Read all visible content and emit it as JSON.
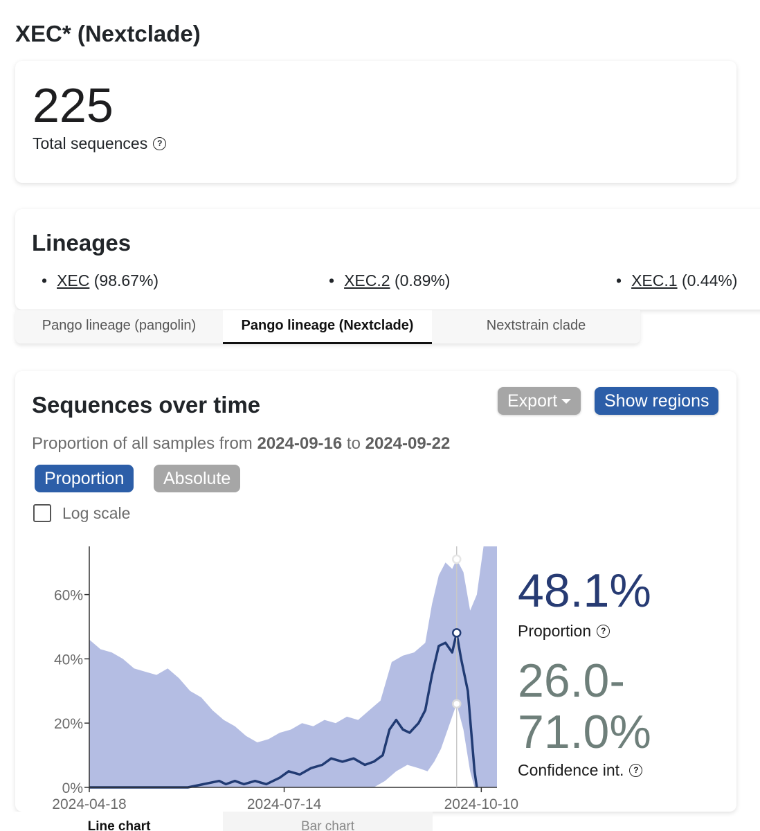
{
  "page": {
    "title": "XEC* (Nextclade)"
  },
  "total": {
    "value": "225",
    "label": "Total sequences",
    "help_glyph": "?"
  },
  "lineages": {
    "title": "Lineages",
    "items": [
      {
        "name": "XEC",
        "percent": "(98.67%)"
      },
      {
        "name": "XEC.2",
        "percent": "(0.89%)"
      },
      {
        "name": "XEC.1",
        "percent": "(0.44%)"
      }
    ]
  },
  "lineage_tabs": [
    "Pango lineage (pangolin)",
    "Pango lineage (Nextclade)",
    "Nextstrain clade"
  ],
  "lineage_tab_active": "Pango lineage (Nextclade)",
  "sequences": {
    "title": "Sequences over time",
    "export_label": "Export",
    "regions_label": "Show regions",
    "subtitle_prefix": "Proportion of all samples from",
    "subtitle_from": "2024-09-16",
    "subtitle_to_word": "to",
    "subtitle_to": "2024-09-22",
    "mode_proportion": "Proportion",
    "mode_absolute": "Absolute",
    "log_scale_label": "Log scale",
    "log_scale_checked": false,
    "stat_value": "48.1%",
    "stat_label": "Proportion",
    "ci_value": "26.0-\n71.0%",
    "ci_label": "Confidence int."
  },
  "chart_tabs": [
    "Line chart",
    "Bar chart"
  ],
  "chart_tab_active": "Line chart",
  "colors": {
    "line": "#213b73",
    "band": "#b4bde3",
    "accent_blue": "#2c5ea8",
    "button_gray": "#a6a6a6"
  },
  "chart_data": {
    "type": "area",
    "x_ticks": [
      "2024-04-18",
      "2024-07-14",
      "2024-10-10"
    ],
    "y_ticks": [
      "0%",
      "20%",
      "40%",
      "60%"
    ],
    "xlim": [
      "2024-04-18",
      "2024-10-17"
    ],
    "ylim": [
      0,
      0.75
    ],
    "grid": false,
    "series": [
      {
        "kind": "line",
        "points": [
          [
            "2024-04-18",
            0
          ],
          [
            "2024-06-01",
            0
          ],
          [
            "2024-06-08",
            0.01
          ],
          [
            "2024-06-15",
            0.02
          ],
          [
            "2024-06-18",
            0.01
          ],
          [
            "2024-06-22",
            0.02
          ],
          [
            "2024-06-26",
            0.01
          ],
          [
            "2024-07-01",
            0.02
          ],
          [
            "2024-07-06",
            0.01
          ],
          [
            "2024-07-12",
            0.03
          ],
          [
            "2024-07-16",
            0.05
          ],
          [
            "2024-07-21",
            0.04
          ],
          [
            "2024-07-26",
            0.06
          ],
          [
            "2024-07-31",
            0.07
          ],
          [
            "2024-08-04",
            0.09
          ],
          [
            "2024-08-09",
            0.08
          ],
          [
            "2024-08-14",
            0.09
          ],
          [
            "2024-08-19",
            0.07
          ],
          [
            "2024-08-23",
            0.08
          ],
          [
            "2024-08-27",
            0.1
          ],
          [
            "2024-08-30",
            0.18
          ],
          [
            "2024-09-02",
            0.21
          ],
          [
            "2024-09-05",
            0.18
          ],
          [
            "2024-09-08",
            0.17
          ],
          [
            "2024-09-12",
            0.2
          ],
          [
            "2024-09-15",
            0.24
          ],
          [
            "2024-09-18",
            0.35
          ],
          [
            "2024-09-21",
            0.44
          ],
          [
            "2024-09-24",
            0.45
          ],
          [
            "2024-09-27",
            0.42
          ],
          [
            "2024-09-29",
            0.48
          ],
          [
            "2024-10-01",
            0.4
          ],
          [
            "2024-10-04",
            0.3
          ],
          [
            "2024-10-07",
            0.05
          ],
          [
            "2024-10-08",
            0
          ]
        ]
      },
      {
        "kind": "band_upper",
        "points": [
          [
            "2024-04-18",
            0.46
          ],
          [
            "2024-04-23",
            0.43
          ],
          [
            "2024-04-28",
            0.42
          ],
          [
            "2024-05-03",
            0.4
          ],
          [
            "2024-05-08",
            0.37
          ],
          [
            "2024-05-13",
            0.36
          ],
          [
            "2024-05-18",
            0.35
          ],
          [
            "2024-05-23",
            0.37
          ],
          [
            "2024-05-28",
            0.34
          ],
          [
            "2024-06-02",
            0.3
          ],
          [
            "2024-06-07",
            0.28
          ],
          [
            "2024-06-12",
            0.24
          ],
          [
            "2024-06-17",
            0.21
          ],
          [
            "2024-06-22",
            0.19
          ],
          [
            "2024-06-27",
            0.16
          ],
          [
            "2024-07-02",
            0.14
          ],
          [
            "2024-07-07",
            0.15
          ],
          [
            "2024-07-12",
            0.17
          ],
          [
            "2024-07-17",
            0.18
          ],
          [
            "2024-07-22",
            0.2
          ],
          [
            "2024-07-27",
            0.19
          ],
          [
            "2024-08-01",
            0.21
          ],
          [
            "2024-08-06",
            0.2
          ],
          [
            "2024-08-11",
            0.22
          ],
          [
            "2024-08-16",
            0.21
          ],
          [
            "2024-08-21",
            0.24
          ],
          [
            "2024-08-26",
            0.27
          ],
          [
            "2024-08-31",
            0.39
          ],
          [
            "2024-09-05",
            0.41
          ],
          [
            "2024-09-10",
            0.42
          ],
          [
            "2024-09-15",
            0.45
          ],
          [
            "2024-09-18",
            0.57
          ],
          [
            "2024-09-21",
            0.66
          ],
          [
            "2024-09-24",
            0.7
          ],
          [
            "2024-09-27",
            0.68
          ],
          [
            "2024-09-29",
            0.71
          ],
          [
            "2024-10-02",
            0.67
          ],
          [
            "2024-10-05",
            0.55
          ],
          [
            "2024-10-08",
            0.6
          ],
          [
            "2024-10-11",
            0.75
          ],
          [
            "2024-10-17",
            0.75
          ]
        ]
      },
      {
        "kind": "band_lower",
        "points": [
          [
            "2024-04-18",
            0
          ],
          [
            "2024-08-23",
            0
          ],
          [
            "2024-08-28",
            0.02
          ],
          [
            "2024-09-02",
            0.05
          ],
          [
            "2024-09-07",
            0.07
          ],
          [
            "2024-09-12",
            0.06
          ],
          [
            "2024-09-16",
            0.05
          ],
          [
            "2024-09-19",
            0.08
          ],
          [
            "2024-09-22",
            0.12
          ],
          [
            "2024-09-25",
            0.18
          ],
          [
            "2024-09-29",
            0.26
          ],
          [
            "2024-10-02",
            0.18
          ],
          [
            "2024-10-05",
            0.05
          ],
          [
            "2024-10-07",
            0
          ],
          [
            "2024-10-17",
            0
          ]
        ]
      }
    ],
    "selected_point": {
      "x": "2024-09-29",
      "y": 0.481,
      "ci": [
        0.26,
        0.71
      ]
    }
  }
}
